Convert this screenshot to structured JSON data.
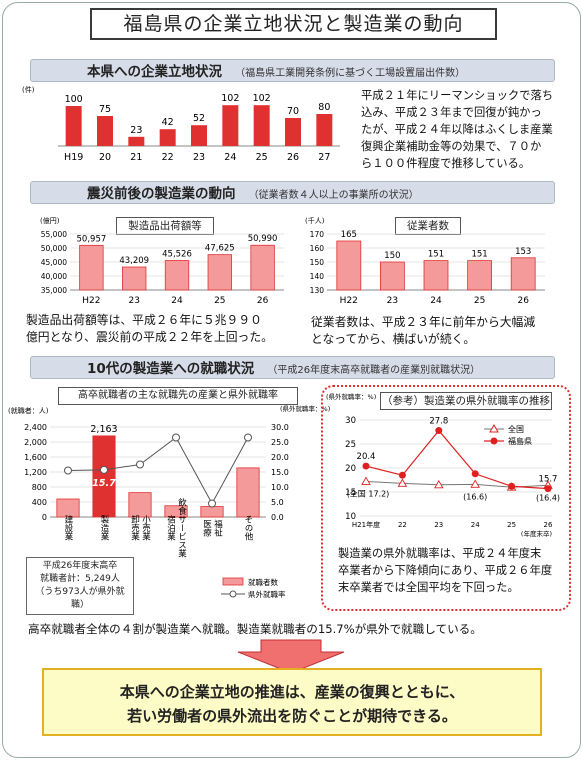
{
  "page": {
    "title": "福島県の企業立地状況と製造業の動向"
  },
  "section1": {
    "heading": "本県への企業立地状況",
    "subheading": "（福島県工業開発条例に基づく工場設置届出件数）",
    "text_lines": [
      "平成２１年にリーマンショックで落ち",
      "込み、平成２３年まで回復が鈍かっ",
      "たが、平成２４年以降はふくしま産業",
      "復興企業補助金等の効果で、７０か",
      "ら１００件程度で推移している。"
    ]
  },
  "section2": {
    "heading": "震災前後の製造業の動向",
    "subheading": "（従業者数４人以上の事業所の状況）",
    "left_title": "製造品出荷額等",
    "right_title": "従業者数",
    "left_text_lines": [
      "製造品出荷額等は、平成２６年に５兆９９０",
      "億円となり、震災前の平成２２年を上回った。"
    ],
    "right_text_lines": [
      "従業者数は、平成２３年に前年から大幅減",
      "となってから、横ばいが続く。"
    ]
  },
  "section3": {
    "heading": "10代の製造業への就職状況",
    "subheading": "（平成26年度末高卒就職者の産業別就職状況）",
    "left_title": "高卒就職者の主な就職先の産業と県外就職率",
    "ref_title": "（参考）製造業の県外就職率の推移",
    "ref_text_lines": [
      "製造業の県外就職率は、平成２４年度末",
      "卒業者から下降傾向にあり、平成２６年度",
      "末卒業者では全国平均を下回った。"
    ],
    "note_lines": [
      "平成26年度末高卒",
      "就職者計：5,249人",
      "（うち973人が県外就職）"
    ],
    "summary": "高卒就職者全体の４割が製造業へ就職。製造業就職者の15.7%が県外で就職している。"
  },
  "conclusion": {
    "lines": [
      "本県への企業立地の推進は、産業の復興とともに、",
      "若い労働者の県外流出を防ぐことが期待できる。"
    ]
  },
  "colors": {
    "bar_red": "#e03131",
    "bar_pink": "#f49a9a",
    "line_red": "#e02020",
    "section_bg": "#d6dce8"
  },
  "chart_data": [
    {
      "type": "bar",
      "unit_label": "(件)",
      "categories": [
        "H19",
        "20",
        "21",
        "22",
        "23",
        "24",
        "25",
        "26",
        "27"
      ],
      "values": [
        100,
        75,
        23,
        42,
        52,
        102,
        102,
        70,
        80
      ],
      "ylim": [
        0,
        120
      ]
    },
    {
      "type": "bar",
      "title": "製造品出荷額等",
      "unit_label": "(億円)",
      "categories": [
        "H22",
        "23",
        "24",
        "25",
        "26"
      ],
      "values": [
        50957,
        43209,
        45526,
        47625,
        50990
      ],
      "value_labels": [
        "50,957",
        "43,209",
        "45,526",
        "47,625",
        "50,990"
      ],
      "yticks": [
        "55,000",
        "50,000",
        "45,000",
        "40,000",
        "35,000"
      ],
      "ylim": [
        35000,
        55000
      ]
    },
    {
      "type": "bar",
      "title": "従業者数",
      "unit_label": "(千人)",
      "categories": [
        "H22",
        "23",
        "24",
        "25",
        "26"
      ],
      "values": [
        165,
        150,
        151,
        151,
        153
      ],
      "yticks": [
        "170",
        "160",
        "150",
        "140",
        "130"
      ],
      "ylim": [
        130,
        170
      ]
    },
    {
      "type": "bar",
      "title": "高卒就職者の主な就職先の産業と県外就職率",
      "unit_label_left": "(就職者：人)",
      "unit_label_right": "(県外就職率：%)",
      "categories": [
        "建設業",
        "製造業",
        "卸売業 小売業",
        "宿泊業 飲食サービス業",
        "医療 福祉",
        "その他"
      ],
      "yticks_left": [
        "2,400",
        "2,000",
        "1,600",
        "1,200",
        "800",
        "400",
        "0"
      ],
      "yticks_right": [
        "30.0",
        "25.0",
        "20.0",
        "15.0",
        "10.0",
        "5.0",
        "0.0"
      ],
      "series": [
        {
          "name": "就職者数",
          "values": [
            480,
            2163,
            650,
            300,
            280,
            1310
          ]
        },
        {
          "name": "県外就職率",
          "values": [
            15.5,
            15.7,
            17.5,
            26.5,
            4.5,
            26.5
          ]
        }
      ],
      "data_labels": {
        "manufacturing_count": "2,163",
        "manufacturing_rate": "15.7"
      },
      "ylim_left": [
        0,
        2400
      ],
      "ylim_right": [
        0,
        30
      ]
    },
    {
      "type": "line",
      "title": "（参考）製造業の県外就職率の推移",
      "unit_label": "(県外就職率：%)",
      "x": [
        "H21年度",
        "22",
        "23",
        "24",
        "25",
        "26"
      ],
      "x_note": "(年度末卒)",
      "yticks": [
        "30",
        "25",
        "20",
        "15",
        "10"
      ],
      "series": [
        {
          "name": "全国",
          "values": [
            17.2,
            16.8,
            16.5,
            16.6,
            16.0,
            16.4
          ]
        },
        {
          "name": "福島県",
          "values": [
            20.4,
            18.5,
            27.8,
            18.8,
            16.2,
            15.7
          ]
        }
      ],
      "point_labels": {
        "fukushima_start": "20.4",
        "fukushima_peak": "27.8",
        "fukushima_end": "15.7",
        "national_start": "(全国 17.2)",
        "national_mid": "(16.6)",
        "national_end": "(16.4)"
      },
      "ylim": [
        10,
        30
      ]
    }
  ]
}
